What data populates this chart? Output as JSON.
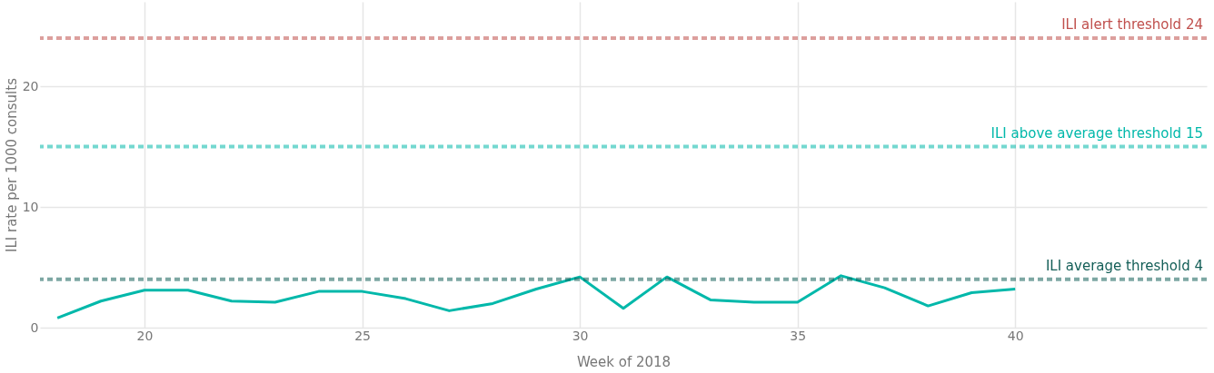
{
  "chart_data": {
    "type": "line",
    "xlabel": "Week of 2018",
    "ylabel": "ILI rate per 1000 consults",
    "x": [
      18,
      19,
      20,
      21,
      22,
      23,
      24,
      25,
      26,
      27,
      28,
      29,
      30,
      31,
      32,
      33,
      34,
      35,
      36,
      37,
      38,
      39,
      40
    ],
    "series": [
      {
        "color": "#01b8aa",
        "values": [
          0.8,
          2.2,
          3.1,
          3.1,
          2.2,
          2.1,
          3.0,
          3.0,
          2.4,
          1.4,
          2.0,
          3.2,
          4.2,
          1.6,
          4.2,
          2.3,
          2.1,
          2.1,
          4.3,
          3.3,
          1.8,
          2.9,
          3.2
        ]
      }
    ],
    "xlim": [
      17.6,
      44.4
    ],
    "xticks": [
      20,
      25,
      30,
      35,
      40
    ],
    "ylim": [
      0,
      27
    ],
    "yticks": [
      0,
      10,
      20
    ],
    "ref_lines": [
      {
        "axis": "y",
        "value": 24,
        "label": "ILI alert threshold 24",
        "color": "#c0504d",
        "line_style": "dashed"
      },
      {
        "axis": "y",
        "value": 15,
        "label": "ILI above average threshold 15",
        "color": "#01b8aa",
        "line_style": "dashed"
      },
      {
        "axis": "y",
        "value": 4,
        "label": "ILI average threshold 4",
        "color": "#135e57",
        "line_style": "dashed"
      }
    ],
    "grid": true,
    "marker": "none",
    "line_style": "solid"
  }
}
